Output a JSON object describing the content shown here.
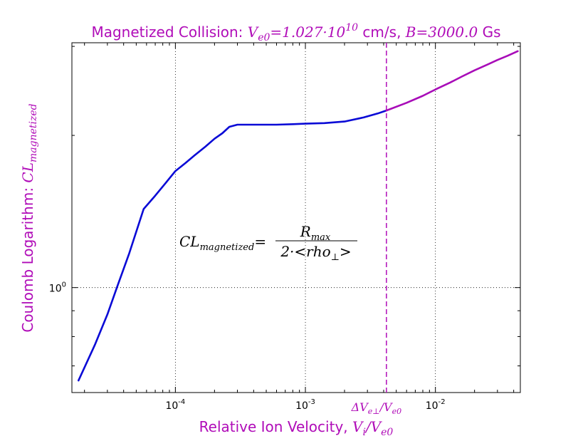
{
  "chart_data": {
    "type": "line",
    "title": {
      "prefix": "Magnetized Collision: ",
      "v_symbol": "V",
      "v_sub": "e0",
      "v_value": "=1.027·10",
      "v_exp": "10",
      "v_unit": " cm/s, ",
      "b_symbol": "B",
      "b_value": "=3000.0",
      "b_unit": " Gs"
    },
    "xlabel": {
      "text": "Relative Ion Velocity, ",
      "symbol": "V",
      "sub1": "i",
      "slash": "/",
      "symbol2": "V",
      "sub2": "e0"
    },
    "ylabel": {
      "text": "Coulomb Logarithm: ",
      "symbol": "CL",
      "sub": "magnetized"
    },
    "x_scale": "log",
    "y_scale": "log",
    "xlim": [
      1.6e-05,
      0.045
    ],
    "ylim": [
      0.62,
      3.05
    ],
    "x_ticks": [
      {
        "value": 0.0001,
        "base": "10",
        "exp": "-4"
      },
      {
        "value": 0.001,
        "base": "10",
        "exp": "-3"
      },
      {
        "value": 0.01,
        "base": "10",
        "exp": "-2"
      }
    ],
    "y_ticks": [
      {
        "value": 1.0,
        "base": "10",
        "exp": "0"
      }
    ],
    "grid": true,
    "series": [
      {
        "color": "#0a0ad6",
        "x": [
          1.8e-05,
          2.4e-05,
          3e-05,
          3.6e-05,
          4.4e-05,
          5.7e-05,
          7e-05,
          8.5e-05,
          0.0001,
          0.00012,
          0.00014,
          0.00017,
          0.0002,
          0.00023,
          0.00026,
          0.0003,
          0.0004,
          0.0006,
          0.0008,
          0.001,
          0.0014,
          0.002,
          0.0028,
          0.0036,
          0.0042
        ],
        "y": [
          0.655,
          0.77,
          0.885,
          1.01,
          1.165,
          1.43,
          1.52,
          1.615,
          1.7,
          1.765,
          1.825,
          1.9,
          1.97,
          2.02,
          2.08,
          2.1,
          2.1,
          2.1,
          2.105,
          2.11,
          2.115,
          2.13,
          2.17,
          2.21,
          2.24
        ]
      },
      {
        "color": "#a80cb8",
        "x": [
          0.0042,
          0.006,
          0.008,
          0.01,
          0.013,
          0.016,
          0.02,
          0.025,
          0.03,
          0.036,
          0.043
        ],
        "y": [
          2.24,
          2.32,
          2.395,
          2.465,
          2.545,
          2.615,
          2.69,
          2.76,
          2.82,
          2.875,
          2.935
        ]
      }
    ],
    "vline": {
      "x": 0.0042,
      "color": "#b00cb8",
      "label_delta": "ΔV",
      "label_sub": "e⊥",
      "label_slash": "/V",
      "label_sub2": "e0"
    },
    "annotation": {
      "lhs": "CL",
      "lhs_sub": "magnetized",
      "eq": "=",
      "num": "R",
      "num_sub": "max",
      "den": "2·<rho",
      "den_sub": "⊥",
      "den_end": ">"
    }
  }
}
